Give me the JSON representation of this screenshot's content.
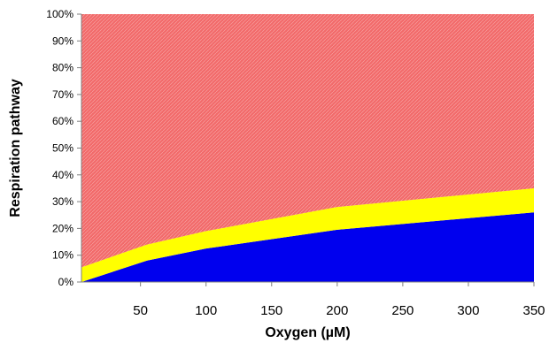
{
  "chart_data": {
    "type": "area",
    "stacked": true,
    "title": "",
    "xlabel": "Oxygen (µM)",
    "ylabel": "Respiration pathway",
    "xlim": [
      5,
      350
    ],
    "ylim": [
      0,
      100
    ],
    "x_ticks": [
      50,
      100,
      150,
      200,
      250,
      300,
      350
    ],
    "y_ticks": [
      "0%",
      "10%",
      "20%",
      "30%",
      "40%",
      "50%",
      "60%",
      "70%",
      "80%",
      "90%",
      "100%"
    ],
    "grid": false,
    "legend": "none",
    "x": [
      5,
      55,
      100,
      200,
      350
    ],
    "series": [
      {
        "values": [
          0,
          8,
          12.5,
          19.5,
          26
        ],
        "color": "#0000ee"
      },
      {
        "values": [
          5.5,
          6,
          6.5,
          8.5,
          9
        ],
        "color": "#ffff00"
      },
      {
        "values": [
          94.5,
          86,
          81,
          72,
          65
        ],
        "color": "#f26565"
      }
    ]
  }
}
